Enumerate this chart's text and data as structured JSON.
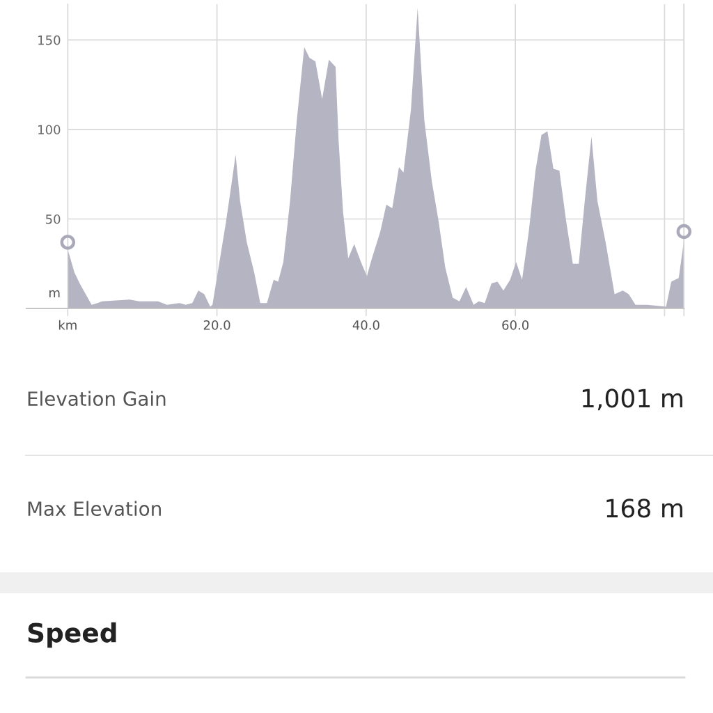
{
  "chart_data": {
    "type": "area",
    "series": [
      {
        "color": "#b4b4c3",
        "x": [
          0.0,
          0.9,
          1.6,
          3.2,
          4.0,
          4.6,
          8.3,
          9.6,
          12.1,
          13.3,
          15.0,
          15.8,
          16.7,
          17.5,
          18.3,
          19.1,
          19.4,
          21.2,
          22.0,
          22.5,
          23.1,
          24.0,
          25.0,
          25.8,
          26.7,
          27.6,
          28.2,
          28.9,
          29.8,
          30.7,
          31.7,
          32.4,
          33.2,
          34.1,
          35.0,
          35.9,
          36.3,
          36.9,
          37.6,
          38.4,
          39.3,
          40.1,
          40.7,
          41.9,
          42.7,
          43.5,
          44.4,
          45.0,
          46.0,
          46.9,
          47.8,
          48.8,
          49.7,
          50.6,
          51.6,
          52.5,
          53.4,
          54.4,
          55.1,
          55.9,
          56.8,
          57.6,
          58.4,
          59.3,
          60.1,
          60.9,
          61.8,
          62.7,
          63.5,
          64.3,
          65.1,
          65.9,
          66.8,
          67.7,
          68.5,
          69.3,
          70.2,
          71.0,
          72.1,
          73.3,
          74.4,
          75.2,
          76.1,
          77.7,
          80.2,
          80.9,
          81.9,
          82.6
        ],
        "values": [
          33,
          20,
          14,
          2,
          3,
          4,
          5,
          4,
          4,
          2,
          3,
          2,
          3,
          10,
          8,
          1,
          2,
          48,
          71,
          86,
          60,
          37,
          20,
          3,
          3,
          16,
          15,
          26,
          60,
          105,
          146,
          140,
          138,
          117,
          139,
          135,
          94,
          54,
          28,
          36,
          26,
          18,
          27,
          43,
          58,
          56,
          79,
          76,
          111,
          168,
          105,
          71,
          49,
          23,
          6,
          4,
          12,
          2,
          4,
          3,
          14,
          15,
          10,
          16,
          26,
          16,
          43,
          77,
          97,
          99,
          78,
          77,
          49,
          25,
          25,
          60,
          96,
          60,
          37,
          8,
          10,
          8,
          2,
          2,
          1,
          15,
          17,
          38
        ]
      },
      {
        "type": "scatter",
        "color": "#a9a9b9",
        "marker": "circle",
        "x": [
          0.0,
          82.6
        ],
        "values": [
          37,
          43
        ]
      }
    ],
    "ylabel": "m",
    "xlim": [
      0,
      82.6
    ],
    "ylim": [
      0,
      170
    ],
    "xticks": [
      {
        "value": 0,
        "label": "km"
      },
      {
        "value": 20,
        "label": "20.0"
      },
      {
        "value": 40,
        "label": "40.0"
      },
      {
        "value": 60,
        "label": "60.0"
      },
      {
        "value": 80,
        "label": null
      },
      {
        "value": 82.6,
        "label": null
      }
    ],
    "yticks": [
      50,
      100,
      150
    ],
    "grid": true,
    "annotations": [
      "Elevation Gain",
      "1,001 m",
      "Max Elevation",
      "168 m",
      "Speed"
    ]
  }
}
